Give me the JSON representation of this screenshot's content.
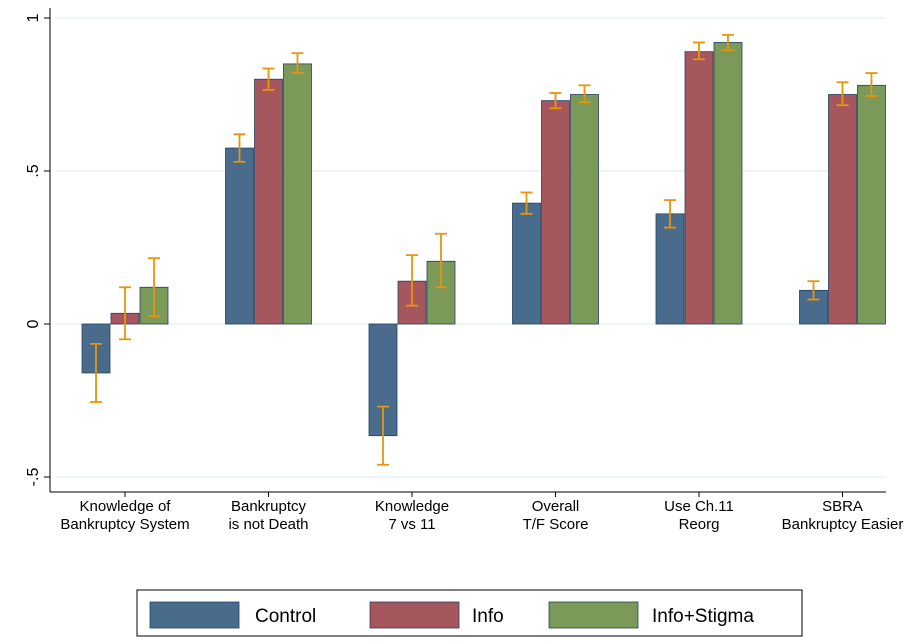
{
  "chart_data": {
    "type": "bar",
    "title": "",
    "xlabel": "",
    "ylabel": "",
    "ylim": [
      -0.55,
      1.0
    ],
    "yticks": [
      {
        "value": -0.5,
        "label": "-.5"
      },
      {
        "value": 0,
        "label": "0"
      },
      {
        "value": 0.5,
        "label": ".5"
      },
      {
        "value": 1,
        "label": "1"
      }
    ],
    "grid": true,
    "legend_position": "bottom",
    "categories": [
      [
        "Knowledge of",
        "Bankruptcy System"
      ],
      [
        "Bankruptcy",
        "is not Death"
      ],
      [
        "Knowledge",
        "7 vs 11"
      ],
      [
        "Overall",
        "T/F Score"
      ],
      [
        "Use Ch.11",
        "Reorg"
      ],
      [
        "SBRA",
        "Bankruptcy Easier"
      ]
    ],
    "series": [
      {
        "name": "Control",
        "color": "#4a6c8c",
        "values": [
          -0.16,
          0.575,
          -0.365,
          0.395,
          0.36,
          0.11
        ],
        "ci_low": [
          -0.255,
          0.53,
          -0.46,
          0.36,
          0.315,
          0.08
        ],
        "ci_high": [
          -0.065,
          0.62,
          -0.27,
          0.43,
          0.405,
          0.14
        ]
      },
      {
        "name": "Info",
        "color": "#a6575e",
        "values": [
          0.035,
          0.8,
          0.14,
          0.73,
          0.89,
          0.75
        ],
        "ci_low": [
          -0.05,
          0.765,
          0.06,
          0.705,
          0.865,
          0.715
        ],
        "ci_high": [
          0.12,
          0.835,
          0.225,
          0.755,
          0.92,
          0.79
        ]
      },
      {
        "name": "Info+Stigma",
        "color": "#7b9958",
        "values": [
          0.12,
          0.85,
          0.205,
          0.75,
          0.92,
          0.78
        ],
        "ci_low": [
          0.025,
          0.82,
          0.12,
          0.725,
          0.895,
          0.745
        ],
        "ci_high": [
          0.215,
          0.885,
          0.295,
          0.78,
          0.945,
          0.82
        ]
      }
    ],
    "error_bar_color": "#e8940c"
  }
}
